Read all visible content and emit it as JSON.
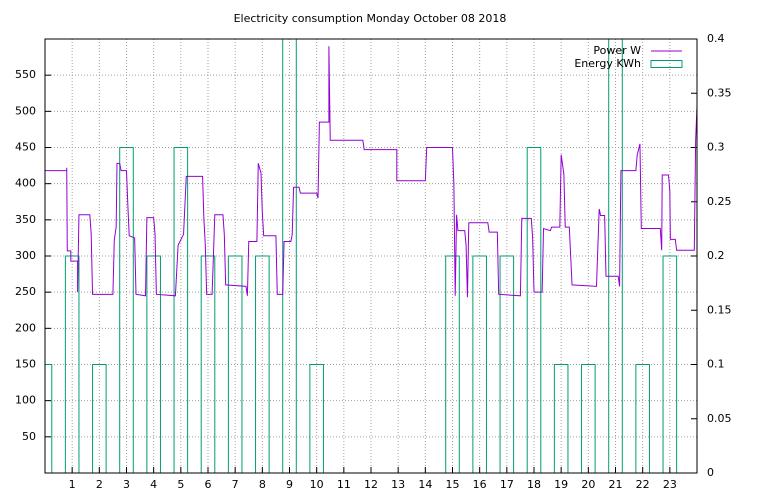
{
  "chart_data": {
    "type": "line",
    "title": "Electricity consumption Monday October 08 2018",
    "xlim": [
      0,
      24
    ],
    "xticks": [
      1,
      2,
      3,
      4,
      5,
      6,
      7,
      8,
      9,
      10,
      11,
      12,
      13,
      14,
      15,
      16,
      17,
      18,
      19,
      20,
      21,
      22,
      23
    ],
    "ylim": [
      0,
      600
    ],
    "yticks": [
      50,
      100,
      150,
      200,
      250,
      300,
      350,
      400,
      450,
      500,
      550
    ],
    "y2lim": [
      0,
      0.4
    ],
    "y2ticks": [
      0,
      0.05,
      0.1,
      0.15,
      0.2,
      0.25,
      0.3,
      0.35,
      0.4
    ],
    "grid": true,
    "legend": "top-right",
    "series": [
      {
        "name": "Power W",
        "type": "line",
        "color": "#9400d3",
        "x": [
          0,
          0.8,
          0.8,
          0.82,
          0.95,
          0.95,
          1.2,
          1.2,
          1.25,
          1.65,
          1.7,
          1.75,
          2.5,
          2.55,
          2.62,
          2.65,
          2.75,
          2.8,
          3.0,
          3.05,
          3.1,
          3.3,
          3.35,
          3.7,
          3.75,
          4.0,
          4.05,
          4.1,
          4.8,
          4.9,
          5.1,
          5.2,
          5.8,
          5.85,
          5.9,
          5.95,
          6.15,
          6.2,
          6.25,
          6.55,
          6.6,
          6.65,
          7.4,
          7.45,
          7.5,
          7.8,
          7.85,
          7.95,
          8.0,
          8.05,
          8.5,
          8.55,
          8.75,
          8.8,
          9.05,
          9.1,
          9.15,
          9.35,
          9.4,
          10.0,
          10.05,
          10.1,
          10.45,
          10.45,
          10.5,
          11.7,
          11.75,
          12.95,
          12.95,
          14.0,
          14.05,
          15.0,
          15.05,
          15.1,
          15.15,
          15.2,
          15.45,
          15.5,
          15.55,
          15.6,
          16.3,
          16.35,
          16.65,
          16.7,
          17.5,
          17.55,
          17.9,
          17.95,
          18.0,
          18.3,
          18.35,
          18.6,
          18.65,
          18.95,
          19.0,
          19.1,
          19.15,
          19.3,
          19.4,
          20.3,
          20.4,
          20.45,
          20.6,
          20.65,
          21.1,
          21.15,
          21.2,
          21.75,
          21.8,
          21.9,
          21.95,
          22.65,
          22.7,
          22.72,
          22.95,
          23.0,
          23.02,
          23.2,
          23.25,
          23.9,
          23.95,
          24
        ],
        "values": [
          418,
          418,
          422,
          307,
          307,
          293,
          293,
          250,
          357,
          357,
          330,
          247,
          247,
          322,
          340,
          428,
          428,
          418,
          418,
          370,
          328,
          325,
          247,
          245,
          353,
          353,
          330,
          247,
          245,
          315,
          330,
          410,
          410,
          350,
          316,
          247,
          247,
          300,
          357,
          357,
          330,
          260,
          258,
          245,
          320,
          320,
          428,
          415,
          360,
          328,
          328,
          247,
          247,
          320,
          320,
          330,
          395,
          395,
          387,
          387,
          380,
          485,
          485,
          590,
          460,
          460,
          447,
          447,
          404,
          404,
          450,
          450,
          400,
          245,
          357,
          335,
          335,
          315,
          243,
          346,
          346,
          333,
          333,
          247,
          245,
          352,
          352,
          325,
          250,
          250,
          338,
          335,
          340,
          340,
          440,
          413,
          340,
          340,
          260,
          258,
          365,
          356,
          356,
          272,
          272,
          258,
          418,
          418,
          440,
          455,
          338,
          338,
          308,
          412,
          412,
          390,
          323,
          323,
          308,
          308,
          460,
          507
        ]
      },
      {
        "name": "Energy KWh",
        "type": "bar",
        "axis": "y2",
        "color": "#009e73",
        "x": [
          0,
          1,
          2,
          3,
          4,
          5,
          6,
          7,
          8,
          9,
          10,
          11,
          12,
          13,
          14,
          15,
          16,
          17,
          18,
          19,
          20,
          21,
          22,
          23
        ],
        "values": [
          0.1,
          0.2,
          0.1,
          0.3,
          0.2,
          0.3,
          0.2,
          0.2,
          0.2,
          0.4,
          0.1,
          0,
          0,
          0,
          0,
          0.2,
          0.2,
          0.2,
          0.3,
          0.1,
          0.1,
          0.4,
          0.1,
          0.2
        ]
      }
    ]
  }
}
